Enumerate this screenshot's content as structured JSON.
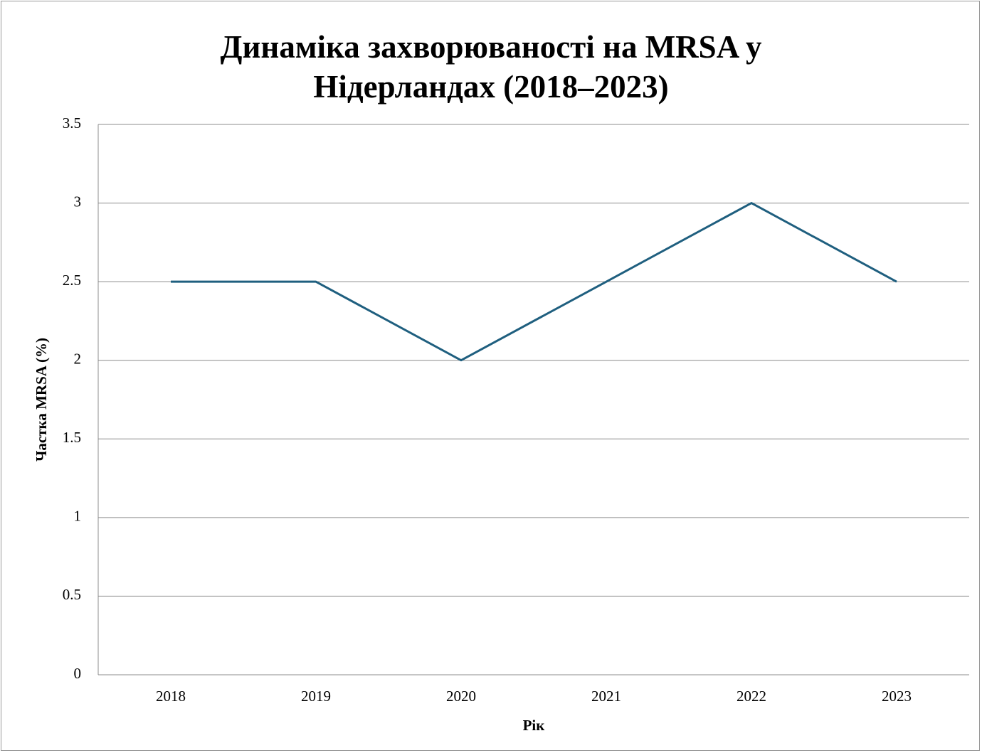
{
  "chart_data": {
    "type": "line",
    "title": "Динаміка захворюваності на MRSA у Нідерландах (2018–2023)",
    "x_label": "Рік",
    "y_label": "Частка MRSA (%)",
    "categories": [
      "2018",
      "2019",
      "2020",
      "2021",
      "2022",
      "2023"
    ],
    "series": [
      {
        "name": "MRSA",
        "color": "#1f5f7f",
        "values": [
          2.5,
          2.5,
          2.0,
          2.5,
          3.0,
          2.5
        ]
      }
    ],
    "ylim": [
      0,
      3.5
    ],
    "yticks": [
      0,
      0.5,
      1,
      1.5,
      2,
      2.5,
      3,
      3.5
    ],
    "grid": true,
    "legend": false
  }
}
